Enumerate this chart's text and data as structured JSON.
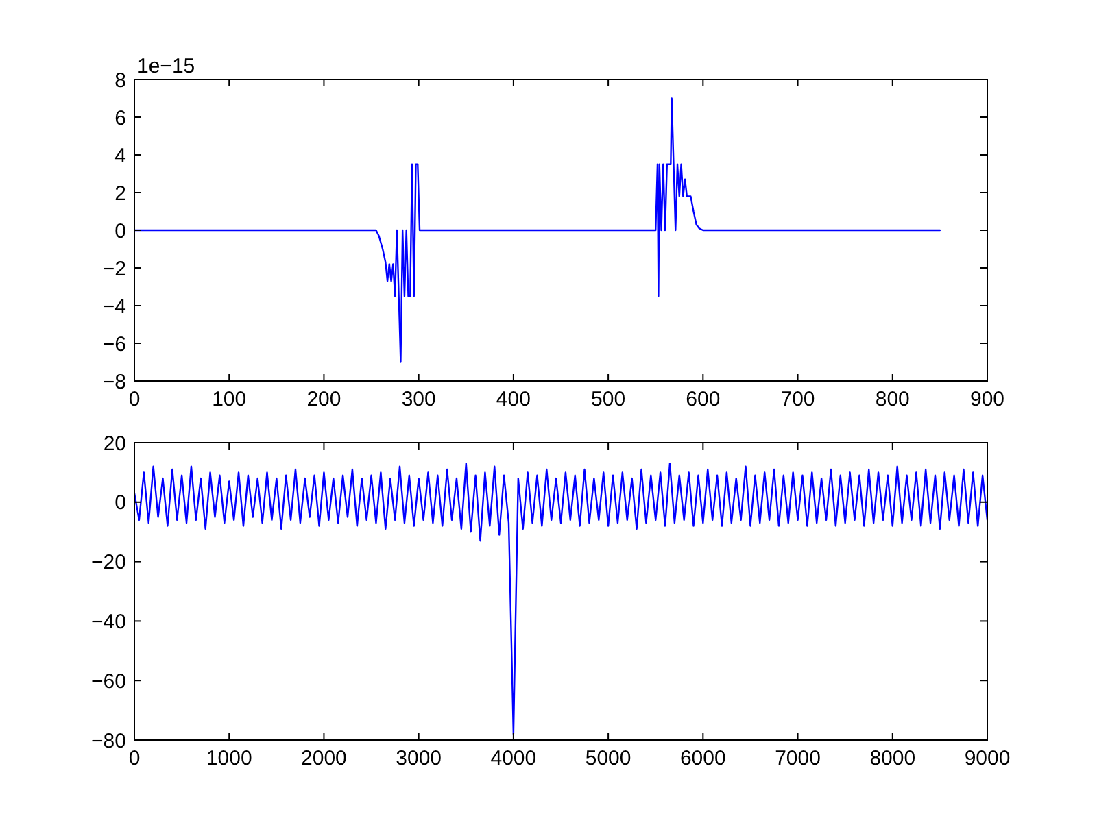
{
  "chart_data": [
    {
      "type": "line",
      "annotations": [
        "1e−15"
      ],
      "series": [
        {
          "color": "#0000ff",
          "x": [
            0,
            255,
            258,
            262,
            265,
            267,
            269,
            271,
            273,
            275,
            277,
            279,
            281,
            283,
            285,
            287,
            289,
            291,
            293,
            295,
            297,
            299,
            301,
            303,
            550,
            552,
            553,
            554,
            556,
            558,
            560,
            562,
            564,
            566,
            567,
            569,
            571,
            573,
            575,
            577,
            579,
            581,
            583,
            585,
            587,
            590,
            593,
            596,
            600,
            850
          ],
          "values": [
            0,
            0,
            -0.3,
            -1,
            -1.7,
            -2.7,
            -1.8,
            -2.7,
            -1.8,
            -3.5,
            0,
            -3.5,
            -7,
            0,
            -3.5,
            0,
            -3.5,
            -3.5,
            3.5,
            -3.5,
            3.5,
            3.5,
            0,
            0,
            0,
            3.5,
            -3.5,
            3.5,
            0,
            3.5,
            0,
            3.5,
            3.5,
            3.5,
            7,
            3.5,
            0,
            3.5,
            1.8,
            3.5,
            1.8,
            2.7,
            1.8,
            1.8,
            1.8,
            1,
            0.3,
            0.1,
            0,
            0
          ]
        }
      ],
      "xlim": [
        0,
        900
      ],
      "xticks": [
        0,
        100,
        200,
        300,
        400,
        500,
        600,
        700,
        800,
        900
      ],
      "ylim": [
        -8,
        8
      ],
      "yticks": [
        -8,
        -6,
        -4,
        -2,
        0,
        2,
        4,
        6,
        8
      ]
    },
    {
      "type": "line",
      "series": [
        {
          "color": "#0000ff",
          "x": [
            0,
            50,
            100,
            150,
            200,
            250,
            300,
            350,
            400,
            450,
            500,
            550,
            600,
            650,
            700,
            750,
            800,
            850,
            900,
            950,
            1000,
            1050,
            1100,
            1150,
            1200,
            1250,
            1300,
            1350,
            1400,
            1450,
            1500,
            1550,
            1600,
            1650,
            1700,
            1750,
            1800,
            1850,
            1900,
            1950,
            2000,
            2050,
            2100,
            2150,
            2200,
            2250,
            2300,
            2350,
            2400,
            2450,
            2500,
            2550,
            2600,
            2650,
            2700,
            2750,
            2800,
            2850,
            2900,
            2950,
            3000,
            3050,
            3100,
            3150,
            3200,
            3250,
            3300,
            3350,
            3400,
            3450,
            3500,
            3550,
            3600,
            3650,
            3700,
            3750,
            3800,
            3850,
            3900,
            3950,
            4000,
            4050,
            4100,
            4150,
            4200,
            4250,
            4300,
            4350,
            4400,
            4450,
            4500,
            4550,
            4600,
            4650,
            4700,
            4750,
            4800,
            4850,
            4900,
            4950,
            5000,
            5050,
            5100,
            5150,
            5200,
            5250,
            5300,
            5350,
            5400,
            5450,
            5500,
            5550,
            5600,
            5650,
            5700,
            5750,
            5800,
            5850,
            5900,
            5950,
            6000,
            6050,
            6100,
            6150,
            6200,
            6250,
            6300,
            6350,
            6400,
            6450,
            6500,
            6550,
            6600,
            6650,
            6700,
            6750,
            6800,
            6850,
            6900,
            6950,
            7000,
            7050,
            7100,
            7150,
            7200,
            7250,
            7300,
            7350,
            7400,
            7450,
            7500,
            7550,
            7600,
            7650,
            7700,
            7750,
            7800,
            7850,
            7900,
            7950,
            8000,
            8050,
            8100,
            8150,
            8200,
            8250,
            8300,
            8350,
            8400,
            8450,
            8500,
            8550,
            8600,
            8650,
            8700,
            8750,
            8800,
            8850,
            8900,
            8950,
            9000
          ],
          "values": [
            3,
            -6,
            10,
            -7,
            12,
            -5,
            8,
            -8,
            11,
            -6,
            9,
            -7,
            12,
            -6,
            8,
            -9,
            10,
            -5,
            9,
            -7,
            7,
            -6,
            10,
            -8,
            9,
            -5,
            8,
            -7,
            10,
            -6,
            8,
            -9,
            9,
            -6,
            11,
            -7,
            8,
            -5,
            9,
            -8,
            10,
            -6,
            8,
            -7,
            9,
            -5,
            11,
            -8,
            8,
            -6,
            9,
            -7,
            10,
            -9,
            8,
            -6,
            12,
            -7,
            9,
            -8,
            8,
            -6,
            10,
            -7,
            9,
            -8,
            11,
            -6,
            8,
            -9,
            13,
            -10,
            9,
            -13,
            10,
            -8,
            12,
            -11,
            9,
            -7,
            -78,
            8,
            -9,
            10,
            -7,
            9,
            -8,
            11,
            -6,
            8,
            -7,
            10,
            -6,
            9,
            -8,
            11,
            -7,
            8,
            -6,
            10,
            -8,
            9,
            -7,
            10,
            -6,
            8,
            -9,
            11,
            -7,
            9,
            -6,
            10,
            -8,
            13,
            -7,
            9,
            -6,
            10,
            -8,
            9,
            -7,
            11,
            -6,
            9,
            -8,
            10,
            -7,
            8,
            -6,
            12,
            -8,
            9,
            -7,
            10,
            -6,
            11,
            -8,
            9,
            -7,
            10,
            -6,
            9,
            -8,
            10,
            -7,
            8,
            -6,
            11,
            -8,
            9,
            -7,
            10,
            -6,
            9,
            -8,
            11,
            -7,
            10,
            -6,
            9,
            -8,
            12,
            -7,
            9,
            -6,
            10,
            -8,
            11,
            -7,
            9,
            -9,
            10,
            -6,
            9,
            -8,
            11,
            -7,
            10,
            -8,
            9,
            -6
          ]
        }
      ],
      "xlim": [
        0,
        9000
      ],
      "xticks": [
        0,
        1000,
        2000,
        3000,
        4000,
        5000,
        6000,
        7000,
        8000,
        9000
      ],
      "ylim": [
        -80,
        20
      ],
      "yticks": [
        -80,
        -60,
        -40,
        -20,
        0,
        20
      ]
    }
  ]
}
